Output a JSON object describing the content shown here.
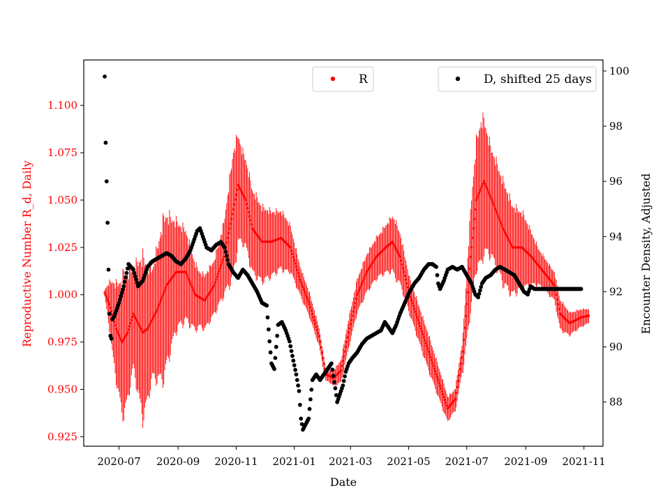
{
  "chart_data": {
    "type": "scatter",
    "title": "",
    "xlabel": "Date",
    "ylabel_left": "Reproductive Number R_d, Daily",
    "ylabel_right": "Encounter Density, Adjusted",
    "x_tick_labels": [
      "2020-07",
      "2020-09",
      "2020-11",
      "2021-01",
      "2021-03",
      "2021-05",
      "2021-07",
      "2021-09",
      "2021-11"
    ],
    "x_tick_days": [
      15,
      77,
      138,
      199,
      258,
      319,
      380,
      442,
      503
    ],
    "x_range_days": [
      -22,
      523
    ],
    "left_axis": {
      "ylim": [
        0.92,
        1.124
      ],
      "ticks": [
        0.925,
        0.95,
        0.975,
        1.0,
        1.025,
        1.05,
        1.075,
        1.1
      ],
      "tick_labels": [
        "0.925",
        "0.950",
        "0.975",
        "1.000",
        "1.025",
        "1.050",
        "1.075",
        "1.100"
      ],
      "color": "#ff0000"
    },
    "right_axis": {
      "ylim": [
        86.4,
        100.4
      ],
      "ticks": [
        88,
        90,
        92,
        94,
        96,
        98,
        100
      ],
      "tick_labels": [
        "88",
        "90",
        "92",
        "94",
        "96",
        "98",
        "100"
      ],
      "color": "#000000"
    },
    "series": [
      {
        "name": "R",
        "axis": "left",
        "color": "#ff0000",
        "style": "band-with-points",
        "start_day": 0,
        "end_day": 508,
        "center_points": [
          [
            0,
            1.001
          ],
          [
            5,
            0.995
          ],
          [
            12,
            0.982
          ],
          [
            18,
            0.975
          ],
          [
            24,
            0.98
          ],
          [
            30,
            0.99
          ],
          [
            40,
            0.98
          ],
          [
            45,
            0.982
          ],
          [
            55,
            0.992
          ],
          [
            65,
            1.005
          ],
          [
            75,
            1.012
          ],
          [
            85,
            1.012
          ],
          [
            95,
            1.0
          ],
          [
            105,
            0.997
          ],
          [
            115,
            1.005
          ],
          [
            125,
            1.02
          ],
          [
            133,
            1.04
          ],
          [
            140,
            1.058
          ],
          [
            148,
            1.05
          ],
          [
            155,
            1.035
          ],
          [
            165,
            1.028
          ],
          [
            175,
            1.028
          ],
          [
            185,
            1.03
          ],
          [
            195,
            1.025
          ],
          [
            205,
            1.008
          ],
          [
            215,
            0.995
          ],
          [
            225,
            0.978
          ],
          [
            232,
            0.958
          ],
          [
            240,
            0.956
          ],
          [
            248,
            0.96
          ],
          [
            256,
            0.98
          ],
          [
            265,
            1.0
          ],
          [
            275,
            1.012
          ],
          [
            285,
            1.02
          ],
          [
            295,
            1.025
          ],
          [
            302,
            1.028
          ],
          [
            310,
            1.02
          ],
          [
            320,
            1.0
          ],
          [
            330,
            0.985
          ],
          [
            340,
            0.97
          ],
          [
            350,
            0.955
          ],
          [
            360,
            0.94
          ],
          [
            368,
            0.945
          ],
          [
            376,
            0.97
          ],
          [
            384,
            1.02
          ],
          [
            390,
            1.05
          ],
          [
            398,
            1.06
          ],
          [
            408,
            1.048
          ],
          [
            418,
            1.035
          ],
          [
            428,
            1.025
          ],
          [
            438,
            1.025
          ],
          [
            448,
            1.02
          ],
          [
            456,
            1.015
          ],
          [
            464,
            1.01
          ],
          [
            472,
            1.005
          ],
          [
            478,
            0.99
          ],
          [
            488,
            0.985
          ],
          [
            500,
            0.988
          ],
          [
            508,
            0.989
          ]
        ],
        "amplitude_points": [
          [
            0,
            0.002
          ],
          [
            8,
            0.02
          ],
          [
            20,
            0.04
          ],
          [
            30,
            0.028
          ],
          [
            40,
            0.045
          ],
          [
            50,
            0.03
          ],
          [
            62,
            0.045
          ],
          [
            75,
            0.03
          ],
          [
            85,
            0.025
          ],
          [
            100,
            0.015
          ],
          [
            115,
            0.015
          ],
          [
            125,
            0.02
          ],
          [
            135,
            0.035
          ],
          [
            145,
            0.025
          ],
          [
            160,
            0.022
          ],
          [
            175,
            0.018
          ],
          [
            190,
            0.015
          ],
          [
            205,
            0.008
          ],
          [
            220,
            0.006
          ],
          [
            235,
            0.003
          ],
          [
            255,
            0.008
          ],
          [
            270,
            0.01
          ],
          [
            290,
            0.012
          ],
          [
            305,
            0.016
          ],
          [
            320,
            0.01
          ],
          [
            340,
            0.01
          ],
          [
            355,
            0.008
          ],
          [
            365,
            0.006
          ],
          [
            375,
            0.008
          ],
          [
            385,
            0.03
          ],
          [
            395,
            0.04
          ],
          [
            405,
            0.03
          ],
          [
            420,
            0.028
          ],
          [
            440,
            0.02
          ],
          [
            455,
            0.01
          ],
          [
            470,
            0.008
          ],
          [
            480,
            0.008
          ],
          [
            490,
            0.006
          ],
          [
            508,
            0.004
          ]
        ]
      },
      {
        "name": "D, shifted 25 days",
        "axis": "right",
        "color": "#000000",
        "style": "points",
        "start_day": 0,
        "end_day": 500,
        "points": [
          [
            0,
            99.8
          ],
          [
            1,
            97.4
          ],
          [
            2,
            96.0
          ],
          [
            3,
            94.5
          ],
          [
            4,
            92.8
          ],
          [
            5,
            91.2
          ],
          [
            6,
            90.4
          ],
          [
            7,
            90.3
          ],
          [
            8,
            91.0
          ],
          [
            10,
            91.1
          ],
          [
            15,
            91.6
          ],
          [
            20,
            92.2
          ],
          [
            25,
            93.0
          ],
          [
            30,
            92.8
          ],
          [
            35,
            92.2
          ],
          [
            40,
            92.4
          ],
          [
            45,
            92.9
          ],
          [
            50,
            93.1
          ],
          [
            55,
            93.2
          ],
          [
            60,
            93.3
          ],
          [
            65,
            93.4
          ],
          [
            70,
            93.3
          ],
          [
            75,
            93.1
          ],
          [
            80,
            93.0
          ],
          [
            85,
            93.2
          ],
          [
            90,
            93.5
          ],
          [
            93,
            93.8
          ],
          [
            97,
            94.2
          ],
          [
            100,
            94.3
          ],
          [
            103,
            94.0
          ],
          [
            107,
            93.6
          ],
          [
            112,
            93.5
          ],
          [
            117,
            93.7
          ],
          [
            122,
            93.8
          ],
          [
            126,
            93.6
          ],
          [
            130,
            93.0
          ],
          [
            135,
            92.7
          ],
          [
            140,
            92.5
          ],
          [
            145,
            92.8
          ],
          [
            150,
            92.6
          ],
          [
            155,
            92.3
          ],
          [
            160,
            92.0
          ],
          [
            165,
            91.6
          ],
          [
            170,
            91.5
          ],
          [
            173,
            90.2
          ],
          [
            175,
            89.4
          ],
          [
            178,
            89.2
          ],
          [
            182,
            90.8
          ],
          [
            186,
            90.9
          ],
          [
            190,
            90.6
          ],
          [
            194,
            90.2
          ],
          [
            198,
            89.5
          ],
          [
            201,
            89.0
          ],
          [
            204,
            88.4
          ],
          [
            206,
            87.4
          ],
          [
            208,
            87.0
          ],
          [
            211,
            87.2
          ],
          [
            214,
            87.4
          ],
          [
            218,
            88.8
          ],
          [
            222,
            89.0
          ],
          [
            226,
            88.8
          ],
          [
            230,
            89.0
          ],
          [
            234,
            89.2
          ],
          [
            238,
            89.4
          ],
          [
            242,
            88.5
          ],
          [
            244,
            88.0
          ],
          [
            247,
            88.3
          ],
          [
            250,
            88.6
          ],
          [
            253,
            89.1
          ],
          [
            256,
            89.4
          ],
          [
            260,
            89.6
          ],
          [
            265,
            89.8
          ],
          [
            270,
            90.1
          ],
          [
            275,
            90.3
          ],
          [
            280,
            90.4
          ],
          [
            285,
            90.5
          ],
          [
            290,
            90.6
          ],
          [
            294,
            90.9
          ],
          [
            298,
            90.7
          ],
          [
            302,
            90.5
          ],
          [
            306,
            90.8
          ],
          [
            310,
            91.2
          ],
          [
            315,
            91.6
          ],
          [
            320,
            92.0
          ],
          [
            325,
            92.3
          ],
          [
            330,
            92.5
          ],
          [
            335,
            92.8
          ],
          [
            340,
            93.0
          ],
          [
            344,
            93.0
          ],
          [
            348,
            92.9
          ],
          [
            350,
            92.3
          ],
          [
            352,
            92.1
          ],
          [
            356,
            92.4
          ],
          [
            360,
            92.8
          ],
          [
            365,
            92.9
          ],
          [
            370,
            92.8
          ],
          [
            375,
            92.9
          ],
          [
            380,
            92.6
          ],
          [
            385,
            92.3
          ],
          [
            389,
            91.9
          ],
          [
            392,
            91.8
          ],
          [
            396,
            92.3
          ],
          [
            400,
            92.5
          ],
          [
            405,
            92.6
          ],
          [
            410,
            92.8
          ],
          [
            415,
            92.9
          ],
          [
            420,
            92.8
          ],
          [
            425,
            92.7
          ],
          [
            430,
            92.6
          ],
          [
            435,
            92.3
          ],
          [
            440,
            92.0
          ],
          [
            444,
            91.9
          ],
          [
            447,
            92.2
          ],
          [
            451,
            92.1
          ],
          [
            453,
            92.1
          ],
          [
            500,
            92.1
          ]
        ]
      }
    ],
    "legends": [
      {
        "entries": [
          "R"
        ],
        "location": "upper-center"
      },
      {
        "entries": [
          "D, shifted 25 days"
        ],
        "location": "upper-right"
      }
    ]
  }
}
